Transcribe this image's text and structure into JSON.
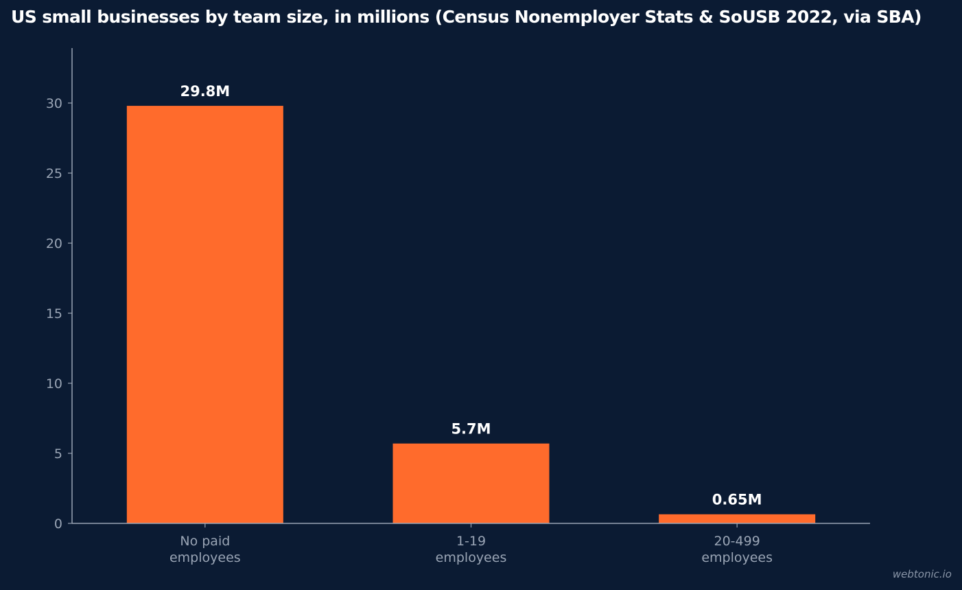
{
  "title": "US small businesses by team size, in millions (Census Nonemployer Stats & SoUSB 2022, via SBA)",
  "watermark": "webtonic.io",
  "colors": {
    "background": "#0b1b33",
    "bar": "#ff6b2c",
    "axis": "#9aa5b5",
    "tick_label": "#9aa5b5",
    "data_label": "#ffffff"
  },
  "chart_data": {
    "type": "bar",
    "categories": [
      [
        "No paid",
        "employees"
      ],
      [
        "1-19",
        "employees"
      ],
      [
        "20-499",
        "employees"
      ]
    ],
    "values": [
      29.8,
      5.7,
      0.65
    ],
    "data_labels": [
      "29.8M",
      "5.7M",
      "0.65M"
    ],
    "y_ticks": [
      0,
      5,
      10,
      15,
      20,
      25,
      30
    ],
    "ylim": [
      0,
      34
    ],
    "xlabel": "",
    "ylabel": "",
    "grid": false,
    "legend": "none"
  }
}
